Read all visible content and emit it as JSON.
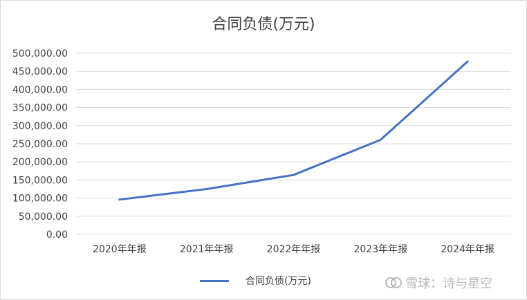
{
  "chart_data": {
    "type": "line",
    "title": "合同负债(万元)",
    "categories": [
      "2020年年报",
      "2021年年报",
      "2022年年报",
      "2023年年报",
      "2024年年报"
    ],
    "series": [
      {
        "name": "合同负债(万元)",
        "color": "#4472c4",
        "values": [
          96000,
          125000,
          164000,
          261000,
          477000
        ]
      }
    ],
    "ylim": [
      0,
      500000
    ],
    "yticks": [
      "0.00",
      "50,000.00",
      "100,000.00",
      "150,000.00",
      "200,000.00",
      "250,000.00",
      "300,000.00",
      "350,000.00",
      "400,000.00",
      "450,000.00",
      "500,000.00"
    ],
    "grid": true,
    "legend_position": "bottom"
  },
  "watermark": {
    "logo_icon": "snowball-logo-icon",
    "text": "雪球：诗与星空"
  }
}
